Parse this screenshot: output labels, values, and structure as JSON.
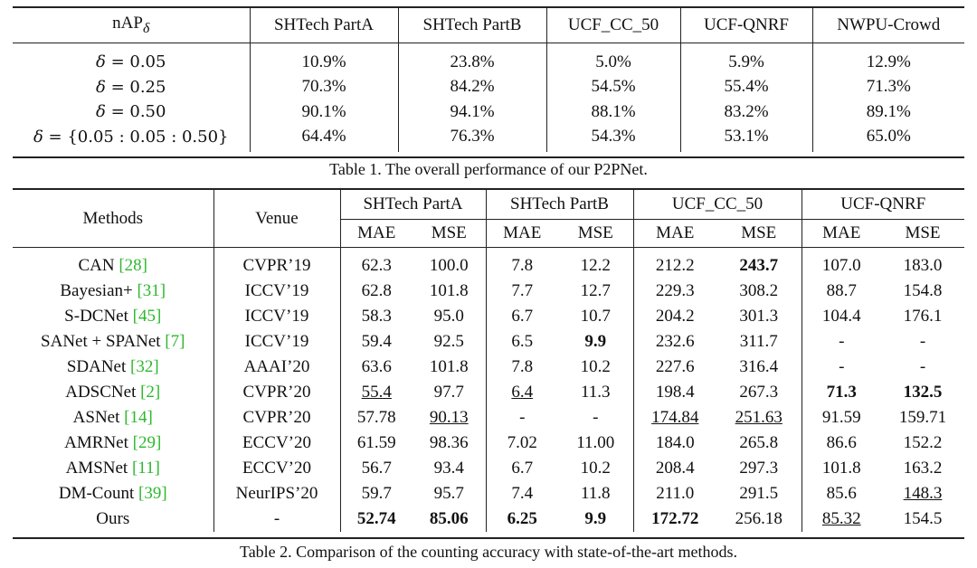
{
  "table1": {
    "headers": [
      "nAP",
      "SHTech PartA",
      "SHTech PartB",
      "UCF_CC_50",
      "UCF-QNRF",
      "NWPU-Crowd"
    ],
    "header_sub": "δ",
    "rows": [
      {
        "label_var": "δ",
        "label_rest": " = 0.05",
        "values": [
          "10.9%",
          "23.8%",
          "5.0%",
          "5.9%",
          "12.9%"
        ]
      },
      {
        "label_var": "δ",
        "label_rest": " = 0.25",
        "values": [
          "70.3%",
          "84.2%",
          "54.5%",
          "55.4%",
          "71.3%"
        ]
      },
      {
        "label_var": "δ",
        "label_rest": " = 0.50",
        "values": [
          "90.1%",
          "94.1%",
          "88.1%",
          "83.2%",
          "89.1%"
        ]
      },
      {
        "label_var": "δ",
        "label_rest": " = {0.05 : 0.05 : 0.50}",
        "values": [
          "64.4%",
          "76.3%",
          "54.3%",
          "53.1%",
          "65.0%"
        ]
      }
    ],
    "caption": "Table 1. The overall performance of our P2PNet."
  },
  "table2": {
    "col_methods": "Methods",
    "col_venue": "Venue",
    "datasets": [
      "SHTech PartA",
      "SHTech PartB",
      "UCF_CC_50",
      "UCF-QNRF"
    ],
    "metric_labels": [
      "MAE",
      "MSE",
      "MAE",
      "MSE",
      "MAE",
      "MSE",
      "MAE",
      "MSE"
    ],
    "rows": [
      {
        "method": "CAN ",
        "ref": "[28]",
        "venue": "CVPR’19",
        "values": [
          "62.3",
          "100.0",
          "7.8",
          "12.2",
          "212.2",
          "243.7",
          "107.0",
          "183.0"
        ],
        "bold": [
          5
        ],
        "underline": []
      },
      {
        "method": "Bayesian+ ",
        "ref": "[31]",
        "venue": "ICCV’19",
        "values": [
          "62.8",
          "101.8",
          "7.7",
          "12.7",
          "229.3",
          "308.2",
          "88.7",
          "154.8"
        ],
        "bold": [],
        "underline": []
      },
      {
        "method": "S-DCNet ",
        "ref": "[45]",
        "venue": "ICCV’19",
        "values": [
          "58.3",
          "95.0",
          "6.7",
          "10.7",
          "204.2",
          "301.3",
          "104.4",
          "176.1"
        ],
        "bold": [],
        "underline": []
      },
      {
        "method": "SANet + SPANet ",
        "ref": "[7]",
        "venue": "ICCV’19",
        "values": [
          "59.4",
          "92.5",
          "6.5",
          "9.9",
          "232.6",
          "311.7",
          "-",
          "-"
        ],
        "bold": [
          3
        ],
        "underline": []
      },
      {
        "method": "SDANet ",
        "ref": "[32]",
        "venue": "AAAI’20",
        "values": [
          "63.6",
          "101.8",
          "7.8",
          "10.2",
          "227.6",
          "316.4",
          "-",
          "-"
        ],
        "bold": [],
        "underline": []
      },
      {
        "method": "ADSCNet ",
        "ref": "[2]",
        "venue": "CVPR’20",
        "values": [
          "55.4",
          "97.7",
          "6.4",
          "11.3",
          "198.4",
          "267.3",
          "71.3",
          "132.5"
        ],
        "bold": [
          6,
          7
        ],
        "underline": [
          0,
          2
        ]
      },
      {
        "method": "ASNet ",
        "ref": "[14]",
        "venue": "CVPR’20",
        "values": [
          "57.78",
          "90.13",
          "-",
          "-",
          "174.84",
          "251.63",
          "91.59",
          "159.71"
        ],
        "bold": [],
        "underline": [
          1,
          4,
          5
        ]
      },
      {
        "method": "AMRNet ",
        "ref": "[29]",
        "venue": "ECCV’20",
        "values": [
          "61.59",
          "98.36",
          "7.02",
          "11.00",
          "184.0",
          "265.8",
          "86.6",
          "152.2"
        ],
        "bold": [],
        "underline": []
      },
      {
        "method": "AMSNet ",
        "ref": "[11]",
        "venue": "ECCV’20",
        "values": [
          "56.7",
          "93.4",
          "6.7",
          "10.2",
          "208.4",
          "297.3",
          "101.8",
          "163.2"
        ],
        "bold": [],
        "underline": []
      },
      {
        "method": "DM-Count ",
        "ref": "[39]",
        "venue": "NeurIPS’20",
        "values": [
          "59.7",
          "95.7",
          "7.4",
          "11.8",
          "211.0",
          "291.5",
          "85.6",
          "148.3"
        ],
        "bold": [],
        "underline": [
          7
        ]
      },
      {
        "method": "Ours",
        "ref": "",
        "venue": "-",
        "values": [
          "52.74",
          "85.06",
          "6.25",
          "9.9",
          "172.72",
          "256.18",
          "85.32",
          "154.5"
        ],
        "bold": [
          0,
          1,
          2,
          3,
          4
        ],
        "underline": [
          6
        ]
      }
    ],
    "caption": "Table 2. Comparison of the counting accuracy with state-of-the-art methods."
  },
  "colors": {
    "reference": "#2db82d",
    "rule": "#222222"
  }
}
